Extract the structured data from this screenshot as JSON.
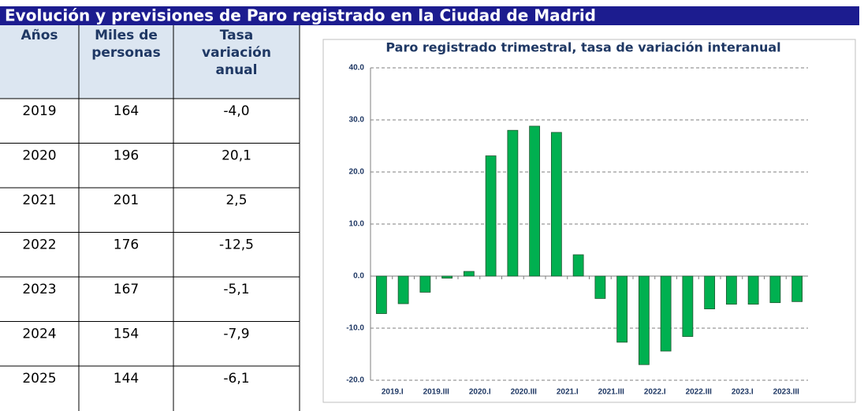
{
  "header": {
    "title": "Evolución y previsiones de Paro registrado en la Ciudad de Madrid"
  },
  "table": {
    "columns": [
      [
        "Años"
      ],
      [
        "Miles de",
        "personas"
      ],
      [
        "Tasa",
        "variación",
        "anual"
      ]
    ],
    "rows": [
      [
        "2019",
        "164",
        "-4,0"
      ],
      [
        "2020",
        "196",
        "20,1"
      ],
      [
        "2021",
        "201",
        "2,5"
      ],
      [
        "2022",
        "176",
        "-12,5"
      ],
      [
        "2023",
        "167",
        "-5,1"
      ],
      [
        "2024",
        "154",
        "-7,9"
      ],
      [
        "2025",
        "144",
        "-6,1"
      ]
    ]
  },
  "chart_data": {
    "type": "bar",
    "title": "Paro registrado trimestral, tasa de variación interanual",
    "categories": [
      "2019.I",
      null,
      "2019.III",
      null,
      "2020.I",
      null,
      "2020.III",
      null,
      "2021.I",
      null,
      "2021.III",
      null,
      "2022.I",
      null,
      "2022.III",
      null,
      "2023.I",
      null,
      "2023.III",
      null
    ],
    "values": [
      -7.2,
      -5.3,
      -3.1,
      -0.4,
      0.9,
      23.1,
      28.0,
      28.8,
      27.6,
      4.1,
      -4.3,
      -12.7,
      -17.0,
      -14.4,
      -11.6,
      -6.3,
      -5.4,
      -5.4,
      -5.1,
      -4.9
    ],
    "color": "#00b050",
    "ylim": [
      -20,
      40
    ],
    "yticks": [
      {
        "value": -20,
        "label": "-20.0"
      },
      {
        "value": -10,
        "label": "-10.0"
      },
      {
        "value": 0,
        "label": "0.0"
      },
      {
        "value": 10,
        "label": "10.0"
      },
      {
        "value": 20,
        "label": "20.0"
      },
      {
        "value": 30,
        "label": "30.0"
      },
      {
        "value": 40,
        "label": "40.0"
      }
    ],
    "grid": true
  }
}
